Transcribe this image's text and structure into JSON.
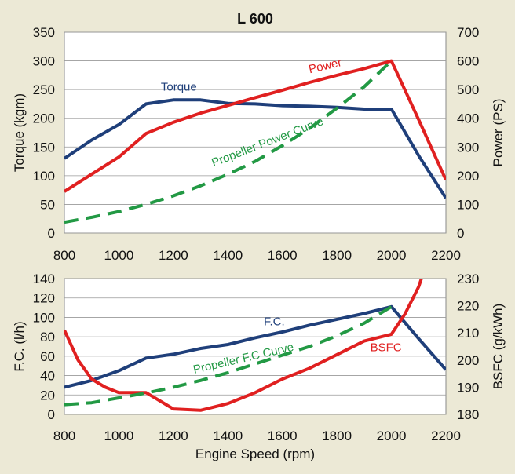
{
  "chart_data": [
    {
      "type": "line",
      "title": "L 600",
      "xlabel": "",
      "ylabel_left": "Torque (kgm)",
      "ylabel_right": "Power (PS)",
      "xlim": [
        800,
        2200
      ],
      "ylim_left": [
        0,
        350
      ],
      "ylim_right": [
        0,
        700
      ],
      "x_ticks": [
        800,
        1000,
        1200,
        1400,
        1600,
        1800,
        2000,
        2200
      ],
      "y_ticks_left": [
        0,
        50,
        100,
        150,
        200,
        250,
        300,
        350
      ],
      "y_ticks_right": [
        0,
        100,
        200,
        300,
        400,
        500,
        600,
        700
      ],
      "grid": true,
      "background": "#ffffff",
      "series": [
        {
          "name": "Torque",
          "axis": "left",
          "color": "#1f3f7a",
          "dash": false,
          "x": [
            800,
            900,
            1000,
            1100,
            1200,
            1300,
            1400,
            1500,
            1600,
            1700,
            1800,
            1900,
            2000,
            2100,
            2200
          ],
          "y": [
            130,
            162,
            189,
            225,
            232,
            232,
            226,
            225,
            222,
            221,
            219,
            216,
            216,
            135,
            61
          ]
        },
        {
          "name": "Power",
          "axis": "right",
          "color": "#e02020",
          "dash": false,
          "x": [
            800,
            900,
            1000,
            1100,
            1200,
            1300,
            1400,
            1500,
            1600,
            1700,
            1800,
            1900,
            2000,
            2100,
            2200
          ],
          "y": [
            145,
            205,
            265,
            347,
            386,
            418,
            445,
            472,
            498,
            525,
            550,
            573,
            600,
            395,
            185
          ]
        },
        {
          "name": "Propeller Power Curve",
          "axis": "right",
          "color": "#229944",
          "dash": true,
          "x": [
            800,
            900,
            1000,
            1100,
            1200,
            1300,
            1400,
            1500,
            1600,
            1700,
            1800,
            1900,
            2000
          ],
          "y": [
            38,
            55,
            75,
            100,
            130,
            165,
            205,
            250,
            305,
            365,
            435,
            510,
            600
          ]
        }
      ],
      "annotations": [
        {
          "text": "Torque",
          "color": "#1f3f7a",
          "x": 1220,
          "y": 248,
          "axis": "left",
          "rotate": 0
        },
        {
          "text": "Power",
          "color": "#e02020",
          "x": 1760,
          "y": 570,
          "axis": "right",
          "rotate": -13
        },
        {
          "text": "Propeller Power Curve",
          "color": "#229944",
          "x": 1550,
          "y": 305,
          "axis": "right",
          "rotate": -21
        }
      ]
    },
    {
      "type": "line",
      "title": "",
      "xlabel": "Engine Speed (rpm)",
      "ylabel_left": "F.C. (l/h)",
      "ylabel_right": "BSFC (g/kWh)",
      "xlim": [
        800,
        2200
      ],
      "ylim_left": [
        0,
        140
      ],
      "ylim_right": [
        180,
        230
      ],
      "x_ticks": [
        800,
        1000,
        1200,
        1400,
        1600,
        1800,
        2000,
        2200
      ],
      "y_ticks_left": [
        0,
        20,
        40,
        60,
        80,
        100,
        120,
        140
      ],
      "y_ticks_right": [
        180,
        190,
        200,
        210,
        220,
        230
      ],
      "grid": true,
      "background": "#ffffff",
      "series": [
        {
          "name": "F.C.",
          "axis": "left",
          "color": "#1f3f7a",
          "dash": false,
          "x": [
            800,
            900,
            1000,
            1100,
            1200,
            1300,
            1400,
            1500,
            1600,
            1700,
            1800,
            1900,
            2000,
            2100,
            2200
          ],
          "y": [
            28,
            35,
            45,
            58,
            62,
            68,
            72,
            79,
            85,
            92,
            98,
            104,
            111,
            78,
            46
          ]
        },
        {
          "name": "BSFC",
          "axis": "right",
          "color": "#e02020",
          "dash": false,
          "x": [
            800,
            850,
            900,
            950,
            1000,
            1100,
            1200,
            1300,
            1400,
            1500,
            1600,
            1700,
            1800,
            1900,
            2000,
            2050,
            2100,
            2110
          ],
          "y": [
            211,
            200,
            193,
            190,
            188,
            188,
            182,
            181.5,
            184,
            188,
            193,
            197,
            202,
            207,
            209.5,
            217,
            227,
            230
          ]
        },
        {
          "name": "Propeller F.C Curve",
          "axis": "left",
          "color": "#229944",
          "dash": true,
          "x": [
            800,
            900,
            1000,
            1100,
            1200,
            1300,
            1400,
            1500,
            1600,
            1700,
            1800,
            1900,
            2000
          ],
          "y": [
            10,
            12,
            17,
            22,
            28,
            35,
            43,
            52,
            61,
            70,
            81,
            94,
            111
          ]
        }
      ],
      "annotations": [
        {
          "text": "F.C.",
          "color": "#1f3f7a",
          "x": 1570,
          "y": 92,
          "axis": "left",
          "rotate": 0
        },
        {
          "text": "Propeller F.C Curve",
          "color": "#229944",
          "x": 1460,
          "y": 54,
          "axis": "left",
          "rotate": -13
        },
        {
          "text": "BSFC",
          "color": "#e02020",
          "x": 1980,
          "y": 65,
          "axis": "left",
          "rotate": 0
        }
      ]
    }
  ]
}
